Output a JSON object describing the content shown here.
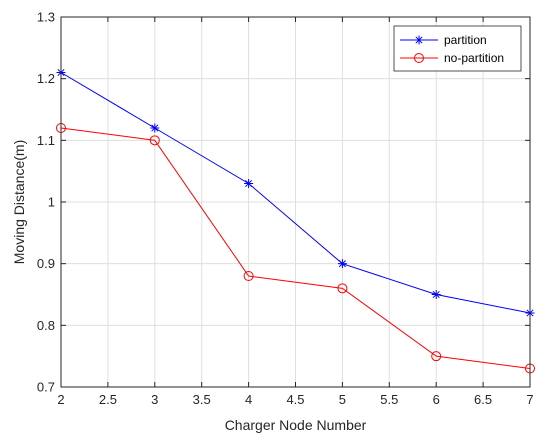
{
  "chart_data": {
    "type": "line",
    "xlabel": "Charger Node Number",
    "ylabel": "Moving Distance(m)",
    "xlim": [
      2,
      7
    ],
    "ylim": [
      0.7,
      1.3
    ],
    "x_ticks": [
      2,
      2.5,
      3,
      3.5,
      4,
      4.5,
      5,
      5.5,
      6,
      6.5,
      7
    ],
    "x_tick_labels": [
      "2",
      "2.5",
      "3",
      "3.5",
      "4",
      "4.5",
      "5",
      "5.5",
      "6",
      "6.5",
      "7"
    ],
    "y_ticks": [
      0.7,
      0.8,
      0.9,
      1.0,
      1.1,
      1.2,
      1.3
    ],
    "y_tick_labels": [
      "0.7",
      "0.8",
      "0.9",
      "1",
      "1.1",
      "1.2",
      "1.3"
    ],
    "grid": true,
    "legend_position": "top-right",
    "series": [
      {
        "name": "partition",
        "color": "#0000ff",
        "marker": "asterisk",
        "x": [
          2,
          3,
          4,
          5,
          6,
          7
        ],
        "y": [
          1.21,
          1.12,
          1.03,
          0.9,
          0.85,
          0.82
        ]
      },
      {
        "name": "no-partition",
        "color": "#ff0000",
        "marker": "circle",
        "x": [
          2,
          3,
          4,
          5,
          6,
          7
        ],
        "y": [
          1.12,
          1.1,
          0.88,
          0.86,
          0.75,
          0.73
        ]
      }
    ]
  }
}
